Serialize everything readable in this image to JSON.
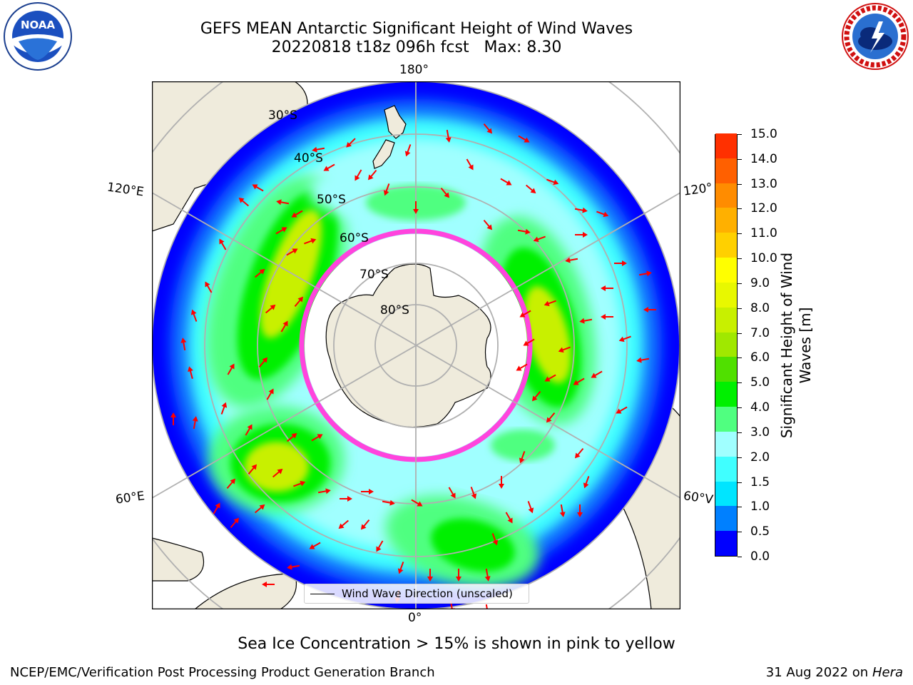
{
  "title": {
    "line1": "GEFS MEAN Antarctic Significant Height of Wind Waves",
    "line2": "20220818 t18z 096h fcst   Max: 8.30"
  },
  "map": {
    "projection": "south-polar-stereographic",
    "longitude_labels": {
      "top": "180°",
      "bottom": "0°",
      "upper_left": "120°E",
      "lower_left": "60°E",
      "upper_right": "120°",
      "lower_right": "60°V"
    },
    "latitude_labels": [
      "30°S",
      "40°S",
      "50°S",
      "60°S",
      "70°S",
      "80°S"
    ],
    "colors": {
      "land": "#efebdc",
      "ocean_low": "#0000ff",
      "sea_ice_edge": "#ff44dd",
      "wave_arrows": "#ff0000",
      "gridlines": "#b0b0b0"
    },
    "legend": {
      "label": "Wind Wave Direction (unscaled)"
    }
  },
  "colorbar": {
    "title": "Significant Height of Wind Waves [m]",
    "title_line1": "Significant Height of Wind",
    "title_line2": "Waves [m]",
    "ticks": [
      "0.0",
      "0.5",
      "1.0",
      "1.5",
      "2.0",
      "3.0",
      "4.0",
      "5.0",
      "6.0",
      "7.0",
      "8.0",
      "9.0",
      "10.0",
      "11.0",
      "12.0",
      "13.0",
      "14.0",
      "15.0"
    ],
    "colors": [
      "#0000ff",
      "#0080ff",
      "#00e5ff",
      "#40ffff",
      "#a0ffff",
      "#50ff80",
      "#00f000",
      "#50e000",
      "#a0e800",
      "#c8f000",
      "#e8f800",
      "#ffff00",
      "#ffd000",
      "#ffb000",
      "#ff8c00",
      "#ff6000",
      "#ff3000",
      "#ff0000"
    ]
  },
  "bottom_note": "Sea Ice Concentration > 15% is shown in pink to yellow",
  "footer": {
    "left": "NCEP/EMC/Verification Post Processing Product Generation Branch",
    "right_date": "31 Aug 2022 on",
    "right_machine": "Hera"
  },
  "logos": {
    "noaa": "NOAA",
    "nws": "NATIONAL WEATHER SERVICE"
  }
}
